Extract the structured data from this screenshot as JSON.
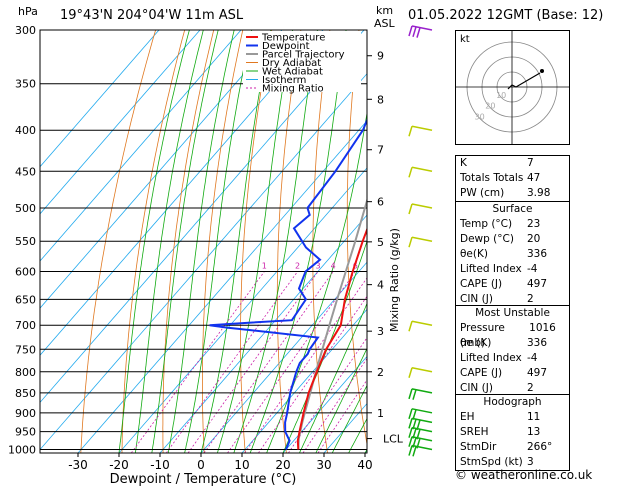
{
  "header": {
    "location": "19°43'N  204°04'W  11m  ASL",
    "datetime": "01.05.2022  12GMT  (Base: 12)",
    "hpa_label": "hPa",
    "km_label": "km",
    "asl_label": "ASL"
  },
  "chart_data": {
    "type": "line",
    "title": "Skew-T log-P diagram",
    "xlabel": "Dewpoint / Temperature (°C)",
    "ylabel": "Mixing Ratio (g/kg)",
    "x_ticks": [
      "-30",
      "-20",
      "-10",
      "0",
      "10",
      "20",
      "30",
      "40"
    ],
    "xlim": [
      -35,
      40
    ],
    "y_ticks": [
      "300",
      "350",
      "400",
      "450",
      "500",
      "550",
      "600",
      "650",
      "700",
      "750",
      "800",
      "850",
      "900",
      "950",
      "1000"
    ],
    "ylim": [
      1010,
      300
    ],
    "km_ticks": [
      {
        "label": "9",
        "p": 323
      },
      {
        "label": "8",
        "p": 366
      },
      {
        "label": "7",
        "p": 423
      },
      {
        "label": "6",
        "p": 491
      },
      {
        "label": "5",
        "p": 551
      },
      {
        "label": "4",
        "p": 623
      },
      {
        "label": "3",
        "p": 712
      },
      {
        "label": "2",
        "p": 800
      },
      {
        "label": "1",
        "p": 900
      },
      {
        "label": "LCL",
        "p": 969
      }
    ],
    "mixing_ratio_labels": [
      "1",
      "2",
      "3",
      "4",
      "6",
      "8",
      "10",
      "16",
      "20",
      "25"
    ],
    "legend": [
      "Temperature",
      "Dewpoint",
      "Parcel Trajectory",
      "Dry Adiabat",
      "Wet Adiabat",
      "Isotherm",
      "Mixing Ratio"
    ],
    "colors": {
      "temperature": "#ee1111",
      "dewpoint": "#1133ee",
      "parcel": "#999999",
      "dry_adiabat": "#e07820",
      "wet_adiabat": "#11aa11",
      "isotherm": "#22aaee",
      "mixing_ratio": "#cc22aa",
      "wind": "#bbcc00"
    },
    "series": [
      {
        "name": "Temperature",
        "points": [
          [
            1000,
            23
          ],
          [
            975,
            21
          ],
          [
            950,
            19.5
          ],
          [
            925,
            18
          ],
          [
            900,
            16.5
          ],
          [
            850,
            13.5
          ],
          [
            800,
            11
          ],
          [
            750,
            8.5
          ],
          [
            700,
            7
          ],
          [
            650,
            2.5
          ],
          [
            600,
            -1.5
          ],
          [
            550,
            -5.5
          ],
          [
            500,
            -9.5
          ],
          [
            450,
            -14.5
          ],
          [
            400,
            -20.5
          ],
          [
            350,
            -28
          ],
          [
            300,
            -36
          ]
        ]
      },
      {
        "name": "Dewpoint",
        "points": [
          [
            1000,
            20
          ],
          [
            975,
            19
          ],
          [
            950,
            16
          ],
          [
            925,
            14
          ],
          [
            900,
            12.5
          ],
          [
            850,
            9
          ],
          [
            800,
            6
          ],
          [
            780,
            5
          ],
          [
            760,
            5
          ],
          [
            750,
            4.5
          ],
          [
            725,
            4
          ],
          [
            705,
            -20
          ],
          [
            700,
            -25
          ],
          [
            695,
            -16
          ],
          [
            690,
            -6
          ],
          [
            650,
            -7
          ],
          [
            630,
            -11
          ],
          [
            600,
            -13
          ],
          [
            580,
            -12
          ],
          [
            560,
            -18
          ],
          [
            530,
            -25
          ],
          [
            510,
            -24
          ],
          [
            500,
            -26
          ],
          [
            450,
            -27
          ],
          [
            400,
            -29
          ],
          [
            380,
            -31
          ],
          [
            350,
            -37
          ],
          [
            320,
            -40
          ],
          [
            300,
            -43
          ]
        ]
      },
      {
        "name": "Parcel Trajectory",
        "points": [
          [
            1000,
            23
          ],
          [
            969,
            20.8
          ],
          [
            925,
            18.2
          ],
          [
            900,
            16.8
          ],
          [
            850,
            13.9
          ],
          [
            800,
            10.8
          ],
          [
            750,
            7.6
          ],
          [
            700,
            4.2
          ],
          [
            650,
            0.6
          ],
          [
            600,
            -3.2
          ],
          [
            550,
            -7.3
          ],
          [
            500,
            -12
          ],
          [
            450,
            -17.2
          ],
          [
            400,
            -23
          ],
          [
            350,
            -30
          ],
          [
            300,
            -38
          ]
        ]
      }
    ],
    "wind_barbs": [
      {
        "p": 1000,
        "flags": 2
      },
      {
        "p": 975,
        "flags": 3
      },
      {
        "p": 950,
        "flags": 3
      },
      {
        "p": 925,
        "flags": 3
      },
      {
        "p": 900,
        "flags": 2
      },
      {
        "p": 850,
        "flags": 2
      },
      {
        "p": 800,
        "flags": 1
      },
      {
        "p": 700,
        "flags": 1
      },
      {
        "p": 550,
        "flags": 1
      },
      {
        "p": 500,
        "flags": 1
      },
      {
        "p": 450,
        "flags": 1
      },
      {
        "p": 400,
        "flags": 1
      },
      {
        "p": 300,
        "flags": 3
      }
    ]
  },
  "hodograph": {
    "title": "kt",
    "ring_labels": [
      "10",
      "20",
      "30"
    ]
  },
  "indices": [
    {
      "label": "K",
      "value": "7"
    },
    {
      "label": "Totals Totals",
      "value": "47"
    },
    {
      "label": "PW (cm)",
      "value": "3.98"
    }
  ],
  "surface": {
    "title": "Surface",
    "rows": [
      {
        "label": "Temp (°C)",
        "value": "23"
      },
      {
        "label": "Dewp (°C)",
        "value": "20"
      },
      {
        "label": "θe(K)",
        "value": "336"
      },
      {
        "label": "Lifted Index",
        "value": "-4"
      },
      {
        "label": "CAPE (J)",
        "value": "497"
      },
      {
        "label": "CIN (J)",
        "value": "2"
      }
    ]
  },
  "most_unstable": {
    "title": "Most Unstable",
    "rows": [
      {
        "label": "Pressure (mb)",
        "value": "1016"
      },
      {
        "label": "θe (K)",
        "value": "336"
      },
      {
        "label": "Lifted Index",
        "value": "-4"
      },
      {
        "label": "CAPE (J)",
        "value": "497"
      },
      {
        "label": "CIN (J)",
        "value": "2"
      }
    ]
  },
  "hodograph_table": {
    "title": "Hodograph",
    "rows": [
      {
        "label": "EH",
        "value": "11"
      },
      {
        "label": "SREH",
        "value": "13"
      },
      {
        "label": "StmDir",
        "value": "266°"
      },
      {
        "label": "StmSpd (kt)",
        "value": "3"
      }
    ]
  },
  "footer": "© weatheronline.co.uk"
}
